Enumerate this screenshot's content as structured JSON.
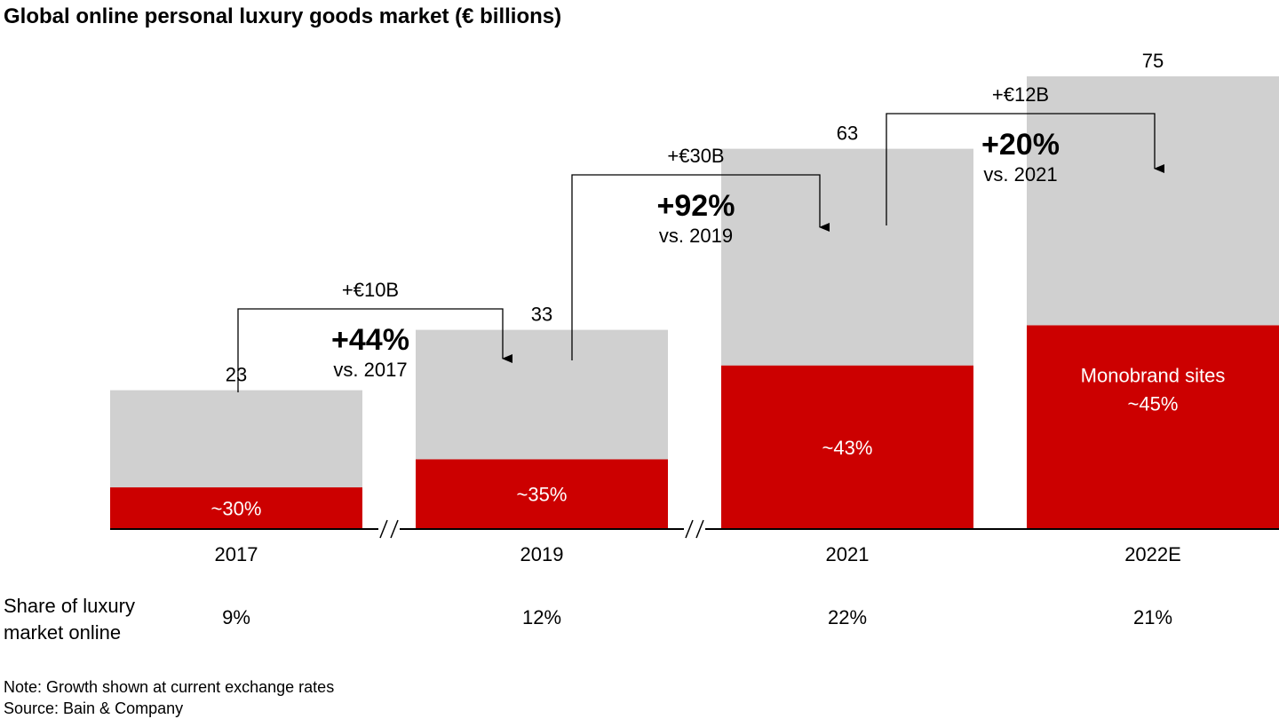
{
  "chart_data": {
    "type": "bar",
    "title": "Global online personal luxury goods market (€ billions)",
    "categories": [
      "2017",
      "2019",
      "2021",
      "2022E"
    ],
    "totals": [
      23,
      33,
      63,
      75
    ],
    "total_labels": [
      "23",
      "33",
      "63",
      "75"
    ],
    "monobrand_share": [
      0.3,
      0.35,
      0.43,
      0.45
    ],
    "share_labels": [
      "~30%",
      "~35%",
      "~43%",
      "~45%"
    ],
    "segment_label": "Monobrand sites",
    "colors": {
      "monobrand": "#cc0000",
      "other": "#d0d0d0",
      "axis": "#000000"
    },
    "axis_breaks": [
      "between 2017 and 2019",
      "between 2019 and 2021"
    ],
    "growth_annotations": [
      {
        "from": "2017",
        "to": "2019",
        "absolute": "+€10B",
        "percent": "+44%",
        "vs": "vs. 2017"
      },
      {
        "from": "2019",
        "to": "2021",
        "absolute": "+€30B",
        "percent": "+92%",
        "vs": "vs. 2019"
      },
      {
        "from": "2021",
        "to": "2022E",
        "absolute": "+€12B",
        "percent": "+20%",
        "vs": "vs. 2021"
      }
    ],
    "online_share": {
      "label_line1": "Share of luxury",
      "label_line2": "market online",
      "values": [
        "9%",
        "12%",
        "22%",
        "21%"
      ]
    }
  },
  "notes": {
    "note": "Note: Growth shown at current exchange rates",
    "source": "Source: Bain & Company"
  }
}
